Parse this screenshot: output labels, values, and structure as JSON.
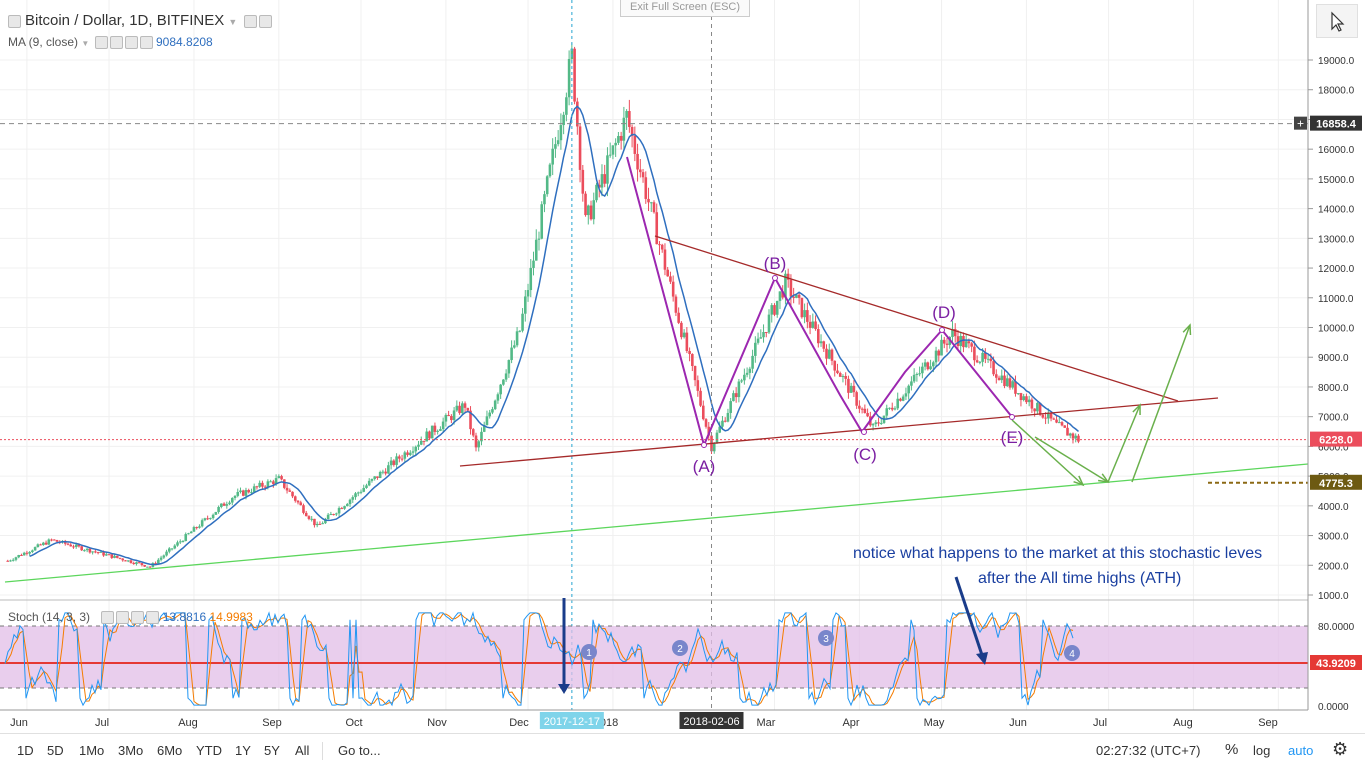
{
  "header": {
    "symbol_title": "Bitcoin / Dollar, 1D, BITFINEX",
    "ma_label": "MA (9, close)",
    "ma_value": "9084.8208",
    "stoch_label": "Stoch (14, 3, 3)",
    "stoch_k": "13.8816",
    "stoch_d": "14.9983",
    "exit_fullscreen": "Exit Full Screen (ESC)"
  },
  "price_axis": {
    "ticks": [
      "19000.0",
      "18000.0",
      "17000.0",
      "16000.0",
      "15000.0",
      "14000.0",
      "13000.0",
      "12000.0",
      "11000.0",
      "10000.0",
      "9000.0",
      "8000.0",
      "7000.0",
      "6000.0",
      "5000.0",
      "4000.0",
      "3000.0",
      "2000.0",
      "1000.0"
    ],
    "label_high": "16858.4",
    "label_current": "6228.0",
    "label_target": "4775.3",
    "plus_sign": "+"
  },
  "stoch_axis": {
    "ticks": [
      "80.0000",
      "0.0000"
    ],
    "label_current": "43.9209"
  },
  "time_axis": {
    "ticks": [
      "Jun",
      "Jul",
      "Aug",
      "Sep",
      "Oct",
      "Nov",
      "Dec",
      "2018",
      "Mar",
      "Apr",
      "May",
      "Jun",
      "Jul",
      "Aug",
      "Sep"
    ],
    "highlight_1": "2017-12-17",
    "highlight_2": "2018-02-06"
  },
  "annotations": {
    "point_a": "(A)",
    "point_b": "(B)",
    "point_c": "(C)",
    "point_d": "(D)",
    "point_e": "(E)",
    "note_line1": "notice what happens to the market at this stochastic leves",
    "note_line2": "after the All time highs (ATH)",
    "stoch_markers": [
      "1",
      "2",
      "3",
      "4"
    ]
  },
  "bottom_bar": {
    "ranges": [
      "1D",
      "5D",
      "1Mo",
      "3Mo",
      "6Mo",
      "YTD",
      "1Y",
      "5Y",
      "All"
    ],
    "goto": "Go to...",
    "clock": "02:27:32 (UTC+7)",
    "percent": "%",
    "log": "log",
    "auto": "auto"
  },
  "colors": {
    "up": "#53b987",
    "down": "#eb4d5c",
    "ma": "#2f6fbf",
    "purple": "#9c27b0",
    "green": "#5cd65c",
    "maroon": "#a52a2a",
    "arrow_green": "#6ab04c",
    "stoch_bg": "#e1bee7",
    "stoch_k": "#2196f3",
    "stoch_d": "#f57c00"
  },
  "chart_data": {
    "type": "candlestick",
    "title": "Bitcoin / Dollar, 1D, BITFINEX",
    "ylim": [
      1000,
      19000
    ],
    "series_key_points": [
      {
        "date": "2017-05-25",
        "price": 2150
      },
      {
        "date": "2017-06-10",
        "price": 2850
      },
      {
        "date": "2017-07-16",
        "price": 1950
      },
      {
        "date": "2017-08-15",
        "price": 4300
      },
      {
        "date": "2017-09-01",
        "price": 4900
      },
      {
        "date": "2017-09-15",
        "price": 3300
      },
      {
        "date": "2017-10-20",
        "price": 6000
      },
      {
        "date": "2017-11-08",
        "price": 7400
      },
      {
        "date": "2017-11-12",
        "price": 5900
      },
      {
        "date": "2017-11-28",
        "price": 9900
      },
      {
        "date": "2017-12-17",
        "price": 19100
      },
      {
        "date": "2017-12-22",
        "price": 13500
      },
      {
        "date": "2018-01-06",
        "price": 17100
      },
      {
        "date": "2018-02-06",
        "price": 6000
      },
      {
        "date": "2018-03-05",
        "price": 11500
      },
      {
        "date": "2018-04-06",
        "price": 6600
      },
      {
        "date": "2018-05-05",
        "price": 9800
      },
      {
        "date": "2018-06-12",
        "price": 6700
      },
      {
        "date": "2018-06-20",
        "price": 6228
      }
    ],
    "moving_average": {
      "name": "MA (9, close)",
      "last": 9084.8208
    },
    "horizontal_levels": [
      16858.4,
      6228.0,
      4775.3
    ],
    "stochastic": {
      "k_last": 13.8816,
      "d_last": 14.9983,
      "upper": 80,
      "lower": 20,
      "current_line": 43.9209
    }
  }
}
